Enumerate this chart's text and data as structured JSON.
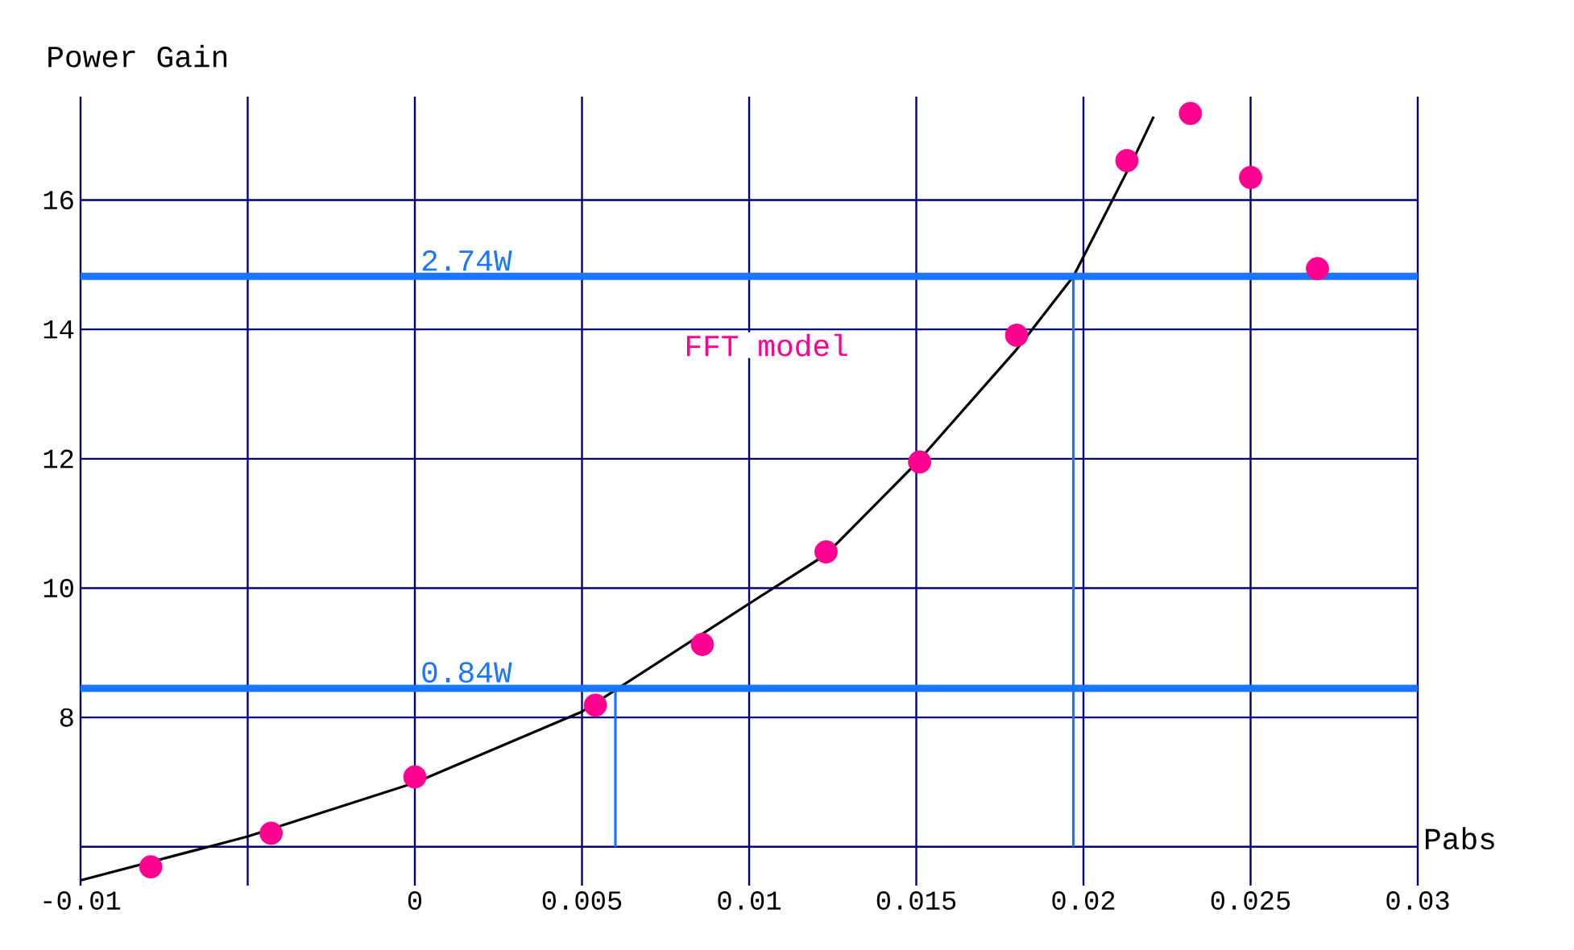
{
  "chart_data": {
    "type": "scatter",
    "ylabel": "Power Gain",
    "xlabel": "Pabs",
    "xlim": [
      -0.01,
      0.03
    ],
    "ylim": [
      5.4,
      17.6
    ],
    "xticks": [
      -0.01,
      {
        "value": -0.005,
        "label": null
      },
      0,
      0.005,
      0.01,
      0.015,
      0.02,
      0.025,
      0.03
    ],
    "yticks": [
      {
        "value": 6,
        "label": null
      },
      8,
      10,
      12,
      14,
      16
    ],
    "grid": true,
    "series": [
      {
        "name": "FFT model",
        "type": "scatter",
        "marker": "circle",
        "color": "#ff0090",
        "x": [
          -0.0079,
          -0.0043,
          0,
          0.0054,
          0.0086,
          0.0123,
          0.0151,
          0.018,
          0.0213,
          0.0232,
          0.025,
          0.027
        ],
        "values": [
          5.69,
          6.21,
          7.08,
          8.19,
          9.13,
          10.56,
          11.95,
          13.91,
          16.61,
          17.34,
          16.35,
          14.94
        ]
      },
      {
        "type": "line",
        "color": "#000000",
        "marker": "none",
        "x": [
          -0.01,
          -0.005,
          0,
          0.005,
          0.01,
          0.0123,
          0.015,
          0.018,
          0.0197,
          0.0215,
          0.0221
        ],
        "values": [
          5.48,
          6.16,
          6.99,
          8.09,
          9.76,
          10.52,
          11.93,
          13.69,
          14.82,
          16.64,
          17.29
        ]
      },
      {
        "type": "line",
        "color": "#1a75ff",
        "marker": "none",
        "x": [
          0.006,
          0.006
        ],
        "values": [
          6,
          8.45
        ]
      },
      {
        "type": "line",
        "color": "#1a75ff",
        "marker": "none",
        "x": [
          0.0197,
          0.0197
        ],
        "values": [
          6,
          14.82
        ]
      }
    ],
    "ref_lines": [
      {
        "axis": "y",
        "value": 14.82,
        "label": "2.74W",
        "color": "#1a75ff"
      },
      {
        "axis": "y",
        "value": 8.45,
        "label": "0.84W",
        "color": "#1a75ff"
      }
    ]
  }
}
